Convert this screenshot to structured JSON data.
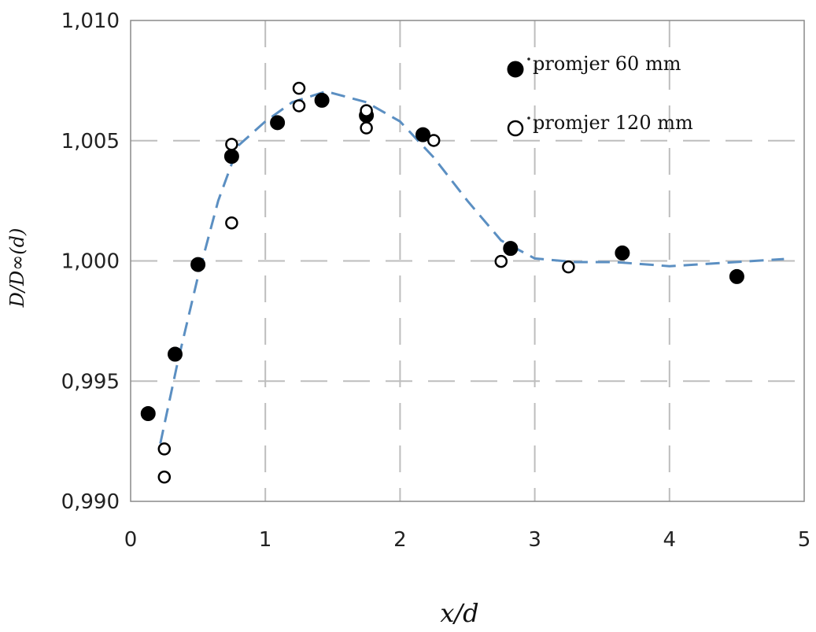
{
  "chart_data": {
    "type": "scatter",
    "xlabel": "x/d",
    "ylabel": "D/D∞(d)",
    "xlim": [
      0,
      5
    ],
    "ylim": [
      0.99,
      1.01
    ],
    "x_ticks": [
      {
        "value": 0,
        "label": "0"
      },
      {
        "value": 1,
        "label": "1"
      },
      {
        "value": 2,
        "label": "2"
      },
      {
        "value": 3,
        "label": "3"
      },
      {
        "value": 4,
        "label": "4"
      },
      {
        "value": 5,
        "label": "5"
      }
    ],
    "y_ticks": [
      {
        "value": 0.99,
        "label": "0,990"
      },
      {
        "value": 0.995,
        "label": "0,995"
      },
      {
        "value": 1.0,
        "label": "1,000"
      },
      {
        "value": 1.005,
        "label": "1,005"
      },
      {
        "value": 1.01,
        "label": "1,010"
      }
    ],
    "grid": true,
    "grid_style": "dashed",
    "legend_position": "top-right",
    "series": [
      {
        "name": "promjer 60 mm",
        "marker": "filled-circle",
        "color": "#000000",
        "points": [
          [
            0.13,
            0.99365
          ],
          [
            0.33,
            0.99612
          ],
          [
            0.5,
            0.99985
          ],
          [
            0.75,
            1.00435
          ],
          [
            1.09,
            1.00575
          ],
          [
            1.42,
            1.00668
          ],
          [
            1.75,
            1.00605
          ],
          [
            2.17,
            1.00525
          ],
          [
            2.82,
            1.00052
          ],
          [
            3.65,
            1.00033
          ],
          [
            4.5,
            0.99935
          ]
        ]
      },
      {
        "name": "promjer 120 mm",
        "marker": "open-circle",
        "color": "#000000",
        "points": [
          [
            0.25,
            0.99218
          ],
          [
            0.25,
            0.99101
          ],
          [
            0.75,
            1.00485
          ],
          [
            0.75,
            1.00158
          ],
          [
            1.25,
            1.00645
          ],
          [
            1.25,
            1.00718
          ],
          [
            1.75,
            1.00625
          ],
          [
            1.75,
            1.00553
          ],
          [
            2.25,
            1.00501
          ],
          [
            2.75,
            0.99998
          ],
          [
            3.25,
            0.99975
          ]
        ]
      },
      {
        "name": "",
        "type": "line",
        "style": "dashed",
        "color": "#5b8fc2",
        "points": [
          [
            0.22,
            0.9924
          ],
          [
            0.35,
            0.9958
          ],
          [
            0.5,
            0.99935
          ],
          [
            0.65,
            1.0025
          ],
          [
            0.8,
            1.0048
          ],
          [
            1.0,
            1.0058
          ],
          [
            1.2,
            1.0066
          ],
          [
            1.45,
            1.00705
          ],
          [
            1.75,
            1.0066
          ],
          [
            2.0,
            1.0058
          ],
          [
            2.25,
            1.0043
          ],
          [
            2.5,
            1.0025
          ],
          [
            2.75,
            1.00085
          ],
          [
            3.0,
            1.0001
          ],
          [
            3.3,
            0.99995
          ],
          [
            3.6,
            0.99995
          ],
          [
            4.0,
            0.99978
          ],
          [
            4.4,
            0.99992
          ],
          [
            4.85,
            1.00008
          ]
        ]
      }
    ]
  }
}
